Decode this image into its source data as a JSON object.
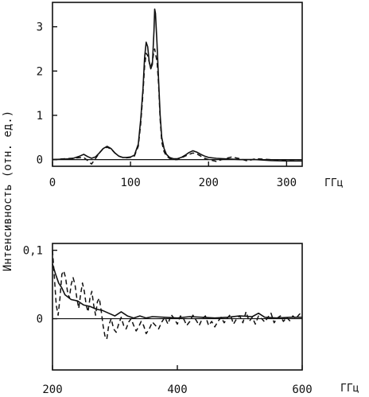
{
  "figure": {
    "ylabel": "Интенсивность (отн. ед.)"
  },
  "chart_data": [
    {
      "type": "line",
      "xunit": "ГГц",
      "xlim": [
        0,
        320
      ],
      "ylim": [
        -0.15,
        3.55
      ],
      "xticks": [
        "0",
        "100",
        "200",
        "300"
      ],
      "xtick_values": [
        0,
        100,
        200,
        300
      ],
      "yticks": [
        "0",
        "1",
        "2",
        "3"
      ],
      "ytick_values": [
        0,
        1,
        2,
        3
      ],
      "zero_line": true,
      "series": [
        {
          "style": "solid",
          "x": [
            0,
            25,
            35,
            40,
            45,
            50,
            55,
            60,
            65,
            70,
            75,
            80,
            85,
            90,
            95,
            100,
            105,
            110,
            113,
            116,
            118,
            120,
            122,
            124,
            126,
            128,
            130,
            131,
            132,
            134,
            136,
            138,
            140,
            143,
            146,
            150,
            155,
            160,
            165,
            170,
            175,
            180,
            185,
            190,
            195,
            200,
            210,
            220,
            240,
            260,
            280,
            300,
            320
          ],
          "y": [
            0.0,
            0.02,
            0.08,
            0.12,
            0.07,
            0.03,
            0.06,
            0.15,
            0.25,
            0.3,
            0.25,
            0.15,
            0.08,
            0.05,
            0.05,
            0.06,
            0.1,
            0.35,
            0.9,
            1.6,
            2.3,
            2.65,
            2.55,
            2.2,
            2.05,
            2.15,
            2.9,
            3.4,
            3.3,
            2.6,
            1.8,
            1.0,
            0.5,
            0.25,
            0.12,
            0.05,
            0.02,
            0.02,
            0.05,
            0.1,
            0.16,
            0.2,
            0.17,
            0.12,
            0.08,
            0.05,
            0.03,
            0.02,
            0.0,
            0.0,
            -0.02,
            -0.03,
            -0.03
          ]
        },
        {
          "style": "dashed",
          "x": [
            0,
            40,
            45,
            50,
            55,
            60,
            65,
            70,
            75,
            80,
            85,
            90,
            95,
            100,
            105,
            110,
            113,
            116,
            118,
            120,
            122,
            124,
            126,
            128,
            130,
            131,
            132,
            134,
            136,
            138,
            140,
            143,
            146,
            150,
            155,
            160,
            165,
            170,
            175,
            180,
            185,
            190,
            195,
            200,
            210,
            220,
            230,
            240,
            250,
            260,
            280,
            300,
            320
          ],
          "y": [
            0.0,
            0.05,
            -0.02,
            -0.1,
            0.02,
            0.15,
            0.25,
            0.28,
            0.24,
            0.15,
            0.08,
            0.05,
            0.04,
            0.05,
            0.08,
            0.3,
            0.8,
            1.5,
            2.1,
            2.4,
            2.35,
            2.2,
            2.1,
            2.2,
            2.45,
            2.5,
            2.4,
            2.2,
            1.7,
            0.9,
            0.4,
            0.18,
            0.08,
            0.03,
            0.0,
            0.0,
            0.04,
            0.08,
            0.12,
            0.15,
            0.13,
            0.08,
            0.03,
            0.0,
            -0.04,
            0.02,
            0.06,
            0.02,
            -0.03,
            0.02,
            0.0,
            -0.02,
            -0.03
          ]
        }
      ]
    },
    {
      "type": "line",
      "xunit": "ГГц",
      "xlim": [
        200,
        600
      ],
      "ylim": [
        -0.075,
        0.11
      ],
      "xticks": [
        "200",
        "400",
        "600"
      ],
      "xtick_values": [
        200,
        400,
        600
      ],
      "yticks": [
        "0",
        "0,1"
      ],
      "ytick_values": [
        0,
        0.1
      ],
      "zero_line": true,
      "series": [
        {
          "style": "solid",
          "x": [
            200,
            205,
            210,
            215,
            220,
            230,
            240,
            250,
            260,
            270,
            280,
            290,
            300,
            310,
            320,
            330,
            340,
            350,
            360,
            380,
            400,
            420,
            440,
            460,
            480,
            500,
            520,
            530,
            540,
            560,
            580,
            600
          ],
          "y": [
            0.08,
            0.065,
            0.052,
            0.045,
            0.035,
            0.028,
            0.026,
            0.02,
            0.018,
            0.014,
            0.012,
            0.008,
            0.004,
            0.01,
            0.004,
            0.001,
            0.004,
            0.001,
            0.003,
            0.002,
            0.001,
            0.003,
            0.002,
            0.001,
            0.002,
            0.004,
            0.003,
            0.008,
            0.002,
            0.001,
            0.002,
            0.002
          ]
        },
        {
          "style": "dashed",
          "x": [
            200,
            203,
            206,
            209,
            212,
            215,
            218,
            221,
            224,
            227,
            230,
            233,
            236,
            239,
            242,
            245,
            248,
            251,
            254,
            257,
            260,
            263,
            266,
            269,
            272,
            275,
            278,
            281,
            284,
            287,
            290,
            294,
            298,
            302,
            306,
            310,
            314,
            318,
            322,
            326,
            330,
            334,
            338,
            342,
            346,
            350,
            355,
            360,
            365,
            370,
            375,
            380,
            385,
            390,
            395,
            400,
            405,
            410,
            415,
            420,
            425,
            430,
            435,
            440,
            445,
            450,
            455,
            460,
            465,
            470,
            475,
            480,
            485,
            490,
            495,
            500,
            505,
            510,
            515,
            520,
            525,
            530,
            535,
            540,
            545,
            550,
            555,
            560,
            565,
            570,
            575,
            580,
            585,
            590,
            595,
            600
          ],
          "y": [
            0.1,
            0.06,
            0.02,
            0.005,
            0.03,
            0.065,
            0.07,
            0.06,
            0.04,
            0.03,
            0.05,
            0.06,
            0.05,
            0.03,
            0.015,
            0.035,
            0.052,
            0.04,
            0.02,
            0.01,
            0.03,
            0.04,
            0.02,
            0.005,
            0.025,
            0.03,
            0.012,
            -0.01,
            -0.025,
            -0.03,
            -0.01,
            0.0,
            -0.015,
            -0.02,
            -0.008,
            0.002,
            -0.01,
            -0.015,
            -0.005,
            0.0,
            -0.01,
            -0.018,
            -0.012,
            -0.004,
            -0.01,
            -0.022,
            -0.015,
            -0.005,
            -0.01,
            -0.015,
            -0.005,
            0.002,
            -0.008,
            0.006,
            0.0,
            -0.008,
            0.004,
            0.0,
            -0.01,
            -0.004,
            0.005,
            -0.002,
            -0.01,
            0.0,
            0.004,
            -0.01,
            -0.004,
            -0.012,
            -0.004,
            0.002,
            -0.006,
            0.001,
            0.006,
            -0.008,
            0.0,
            0.004,
            -0.006,
            0.01,
            -0.004,
            0.002,
            -0.008,
            0.004,
            0.0,
            -0.005,
            0.002,
            0.008,
            -0.006,
            0.001,
            0.004,
            -0.004,
            0.002,
            -0.003,
            0.004,
            0.0,
            0.006,
            0.01
          ]
        }
      ]
    }
  ]
}
